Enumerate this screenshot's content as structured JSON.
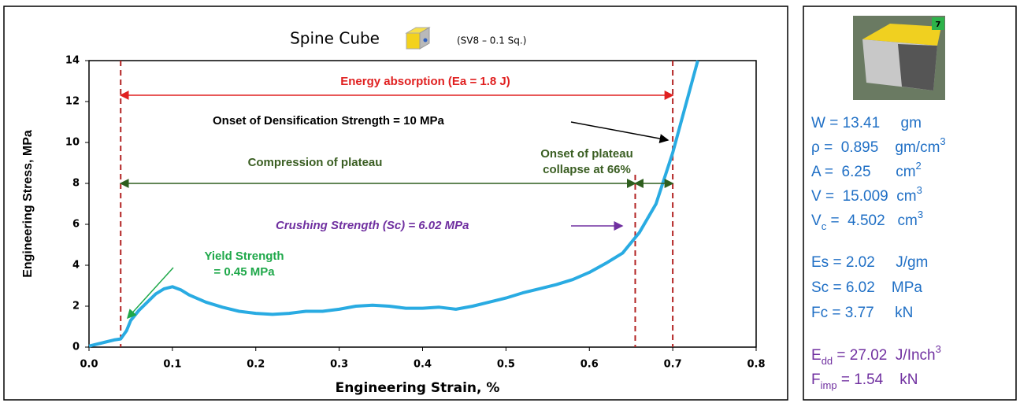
{
  "chart_data": {
    "type": "line",
    "title": "Spine Cube",
    "subtitle": "(SV8 – 0.1 Sq.)",
    "xlabel": "Engineering Strain, %",
    "ylabel": "Engineering Stress, MPa",
    "x": [
      0,
      0.01,
      0.02,
      0.03,
      0.038,
      0.045,
      0.05,
      0.06,
      0.07,
      0.08,
      0.09,
      0.1,
      0.11,
      0.12,
      0.14,
      0.16,
      0.18,
      0.2,
      0.22,
      0.24,
      0.26,
      0.28,
      0.3,
      0.32,
      0.34,
      0.36,
      0.38,
      0.4,
      0.42,
      0.44,
      0.46,
      0.48,
      0.5,
      0.52,
      0.54,
      0.56,
      0.58,
      0.6,
      0.62,
      0.64,
      0.66,
      0.68,
      0.7,
      0.72,
      0.73
    ],
    "series": [
      {
        "name": "Spine Cube",
        "color": "#29abe2",
        "values": [
          0.05,
          0.15,
          0.25,
          0.35,
          0.4,
          0.8,
          1.3,
          1.8,
          2.2,
          2.6,
          2.85,
          2.95,
          2.8,
          2.55,
          2.2,
          1.95,
          1.75,
          1.65,
          1.6,
          1.65,
          1.75,
          1.75,
          1.85,
          2.0,
          2.05,
          2.0,
          1.9,
          1.9,
          1.95,
          1.85,
          2.0,
          2.2,
          2.4,
          2.65,
          2.85,
          3.05,
          3.3,
          3.65,
          4.1,
          4.6,
          5.6,
          7.0,
          9.5,
          12.5,
          14.0
        ]
      }
    ],
    "xlim": [
      0,
      0.8
    ],
    "xticks": [
      {
        "value": 0,
        "label": "0.0"
      },
      0.1,
      0.2,
      0.3,
      0.4,
      0.5,
      0.6,
      0.7,
      0.8
    ],
    "ylim": [
      0,
      14
    ],
    "yticks": [
      0,
      2,
      4,
      6,
      8,
      10,
      12,
      14
    ],
    "grid": false,
    "vlines": [
      0.038,
      0.655,
      0.7
    ],
    "annotations": {
      "energy": "Energy absorption (Ea = 1.8 J)",
      "densification": "Onset of Densification Strength = 10 MPa",
      "compression": "Compression of plateau",
      "collapse": [
        "Onset of plateau",
        "collapse at 66%"
      ],
      "crushing": "Crushing Strength (Sc) = 6.02 MPa",
      "yield": [
        "Yield Strength",
        "= 0.45 MPa"
      ]
    }
  },
  "panel": {
    "badge": "7",
    "groups": [
      {
        "color": "#1f6fc5",
        "lines": [
          [
            {
              "text": "W = 13.41     gm"
            }
          ],
          [
            {
              "text": "ρ =  0.895    gm/cm"
            },
            {
              "sup": "3"
            }
          ],
          [
            {
              "text": "A =  6.25      cm"
            },
            {
              "sup": "2"
            }
          ],
          [
            {
              "text": "V =  15.009  cm"
            },
            {
              "sup": "3"
            }
          ],
          [
            {
              "text": "V"
            },
            {
              "sub": "c"
            },
            {
              "text": " =  4.502   cm"
            },
            {
              "sup": "3"
            }
          ]
        ]
      },
      {
        "color": "#1f6fc5",
        "lines": [
          [
            {
              "text": "Es = 2.02     J/gm"
            }
          ],
          [
            {
              "text": "Sc = 6.02    MPa"
            }
          ],
          [
            {
              "text": "Fc = 3.77     kN"
            }
          ]
        ]
      },
      {
        "color": "#7030a0",
        "lines": [
          [
            {
              "text": "E"
            },
            {
              "sub": "dd"
            },
            {
              "text": " = 27.02  J/Inch"
            },
            {
              "sup": "3"
            }
          ],
          [
            {
              "text": "F"
            },
            {
              "sub": "imp"
            },
            {
              "text": " = 1.54    kN"
            }
          ]
        ]
      }
    ]
  }
}
